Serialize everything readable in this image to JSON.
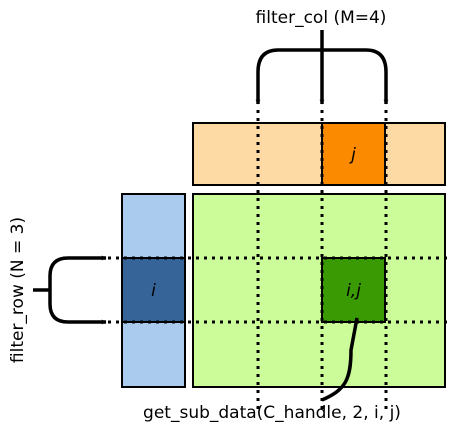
{
  "labels": {
    "filter_col": "filter_col (M=4)",
    "filter_row": "filter_row (N = 3)",
    "get_sub_data": "get_sub_data(C_handle, 2, i, j)",
    "block_i": "i",
    "block_j": "j",
    "block_ij": "i,j"
  },
  "colors": {
    "top_strip": "#fdd9a4",
    "top_highlight": "#fb8a00",
    "left_strip": "#aacbee",
    "left_highlight": "#366499",
    "matrix": "#ccfb99",
    "matrix_highlight": "#3a9a04",
    "outline": "#000000"
  }
}
